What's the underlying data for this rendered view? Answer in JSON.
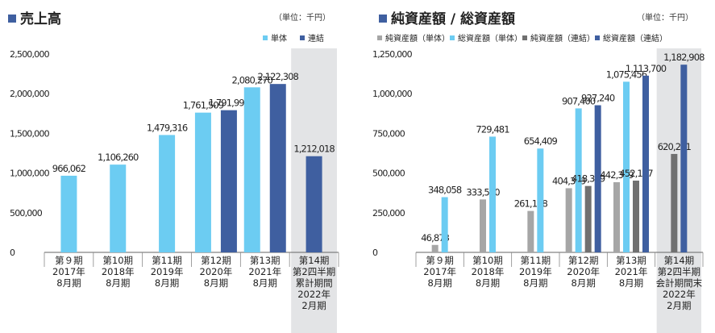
{
  "colors": {
    "tan": "#6cccf2",
    "ren": "#3f5fa0",
    "jun_tan": "#a6a6a6",
    "jun_ren": "#707070",
    "shade": "#e3e4e6"
  },
  "chart_data": [
    {
      "type": "bar",
      "title": "売上高",
      "unit": "（単位：千円）",
      "ylim": [
        0,
        2500000
      ],
      "y_ticks": [
        "2,500,000",
        "2,000,000",
        "1,500,000",
        "1,000,000",
        "500,000",
        "0"
      ],
      "categories": [
        [
          "第９期",
          "2017年",
          "8月期"
        ],
        [
          "第10期",
          "2018年",
          "8月期"
        ],
        [
          "第11期",
          "2019年",
          "8月期"
        ],
        [
          "第12期",
          "2020年",
          "8月期"
        ],
        [
          "第13期",
          "2021年",
          "8月期"
        ],
        [
          "第14期",
          "第2四半期",
          "累計期間",
          "2022年",
          "2月期"
        ]
      ],
      "series": [
        {
          "name": "単体",
          "color": "#6cccf2",
          "values": [
            966062,
            1106260,
            1479316,
            1761509,
            2080270,
            null
          ],
          "labels": [
            "966,062",
            "1,106,260",
            "1,479,316",
            "1,761,509",
            "2,080,270",
            ""
          ]
        },
        {
          "name": "連結",
          "color": "#3f5fa0",
          "values": [
            null,
            null,
            null,
            1791998,
            2122308,
            1212018
          ],
          "labels": [
            "",
            "",
            "",
            "1,791,998",
            "2,122,308",
            "1,212,018"
          ]
        }
      ],
      "legend": "top-right",
      "shaded_last_category": true
    },
    {
      "type": "bar",
      "title": "純資産額 / 総資産額",
      "unit": "（単位：千円）",
      "ylim": [
        0,
        1250000
      ],
      "y_ticks": [
        "1,250,000",
        "1,000,000",
        "750,000",
        "500,000",
        "250,000",
        "0"
      ],
      "categories": [
        [
          "第９期",
          "2017年",
          "8月期"
        ],
        [
          "第10期",
          "2018年",
          "8月期"
        ],
        [
          "第11期",
          "2019年",
          "8月期"
        ],
        [
          "第12期",
          "2020年",
          "8月期"
        ],
        [
          "第13期",
          "2021年",
          "8月期"
        ],
        [
          "第14期",
          "第2四半期",
          "会計期間末",
          "2022年",
          "2月期"
        ]
      ],
      "series": [
        {
          "name": "純資産額（単体）",
          "color": "#a6a6a6",
          "values": [
            46873,
            333590,
            261118,
            404369,
            442389,
            null
          ],
          "labels": [
            "46,873",
            "333,590",
            "261,118",
            "404,369",
            "442,389",
            ""
          ]
        },
        {
          "name": "総資産額（単体）",
          "color": "#6cccf2",
          "values": [
            348058,
            729481,
            654409,
            907400,
            1075456,
            null
          ],
          "labels": [
            "348,058",
            "729,481",
            "654,409",
            "907,400",
            "1,075,456",
            ""
          ]
        },
        {
          "name": "純資産額（連結）",
          "color": "#707070",
          "values": [
            null,
            null,
            null,
            418389,
            452177,
            620221
          ],
          "labels": [
            "",
            "",
            "",
            "418,389",
            "452,177",
            "620,221"
          ]
        },
        {
          "name": "総資産額（連結）",
          "color": "#3f5fa0",
          "values": [
            null,
            null,
            null,
            927240,
            1113700,
            1182908
          ],
          "labels": [
            "",
            "",
            "",
            "927,240",
            "1,113,700",
            "1,182,908"
          ]
        }
      ],
      "legend": "top",
      "shaded_last_category": true
    }
  ]
}
